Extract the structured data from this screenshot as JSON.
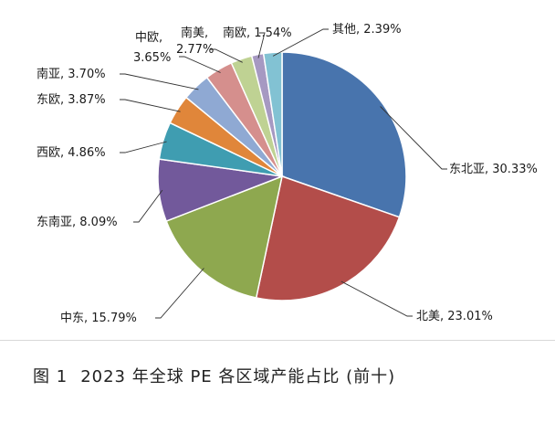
{
  "chart_data": {
    "type": "pie",
    "slices": [
      {
        "label": "东北亚",
        "value": 30.33,
        "color": "#4874ad"
      },
      {
        "label": "北美",
        "value": 23.01,
        "color": "#b34d4a"
      },
      {
        "label": "中东",
        "value": 15.79,
        "color": "#8ea84f"
      },
      {
        "label": "东南亚",
        "value": 8.09,
        "color": "#72599b"
      },
      {
        "label": "西欧",
        "value": 4.86,
        "color": "#3f9db1"
      },
      {
        "label": "东欧",
        "value": 3.87,
        "color": "#e0863a"
      },
      {
        "label": "南亚",
        "value": 3.7,
        "color": "#8fa9d3"
      },
      {
        "label": "中欧",
        "value": 3.65,
        "color": "#d58f8d"
      },
      {
        "label": "南美",
        "value": 2.77,
        "color": "#bfd293"
      },
      {
        "label": "南欧",
        "value": 1.54,
        "color": "#a699c2"
      },
      {
        "label": "其他",
        "value": 2.39,
        "color": "#82c2d3"
      }
    ],
    "start_position": "12 o'clock",
    "direction": "clockwise"
  },
  "labels": {
    "dongbeiya": "东北亚, 30.33%",
    "beimei": "北美, 23.01%",
    "zhongdong": "中东, 15.79%",
    "dongnanya": "东南亚, 8.09%",
    "xiou": "西欧, 4.86%",
    "dongou": "东欧, 3.87%",
    "nanya": "南亚, 3.70%",
    "zhongou_name": "中欧,",
    "zhongou_value": "3.65%",
    "nanmei_name": "南美,",
    "nanmei_value": "2.77%",
    "nanou": "南欧, 1.54%",
    "qita": "其他, 2.39%"
  },
  "caption": {
    "number": "图 1",
    "title": "2023 年全球 PE 各区域产能占比 (前十)"
  }
}
